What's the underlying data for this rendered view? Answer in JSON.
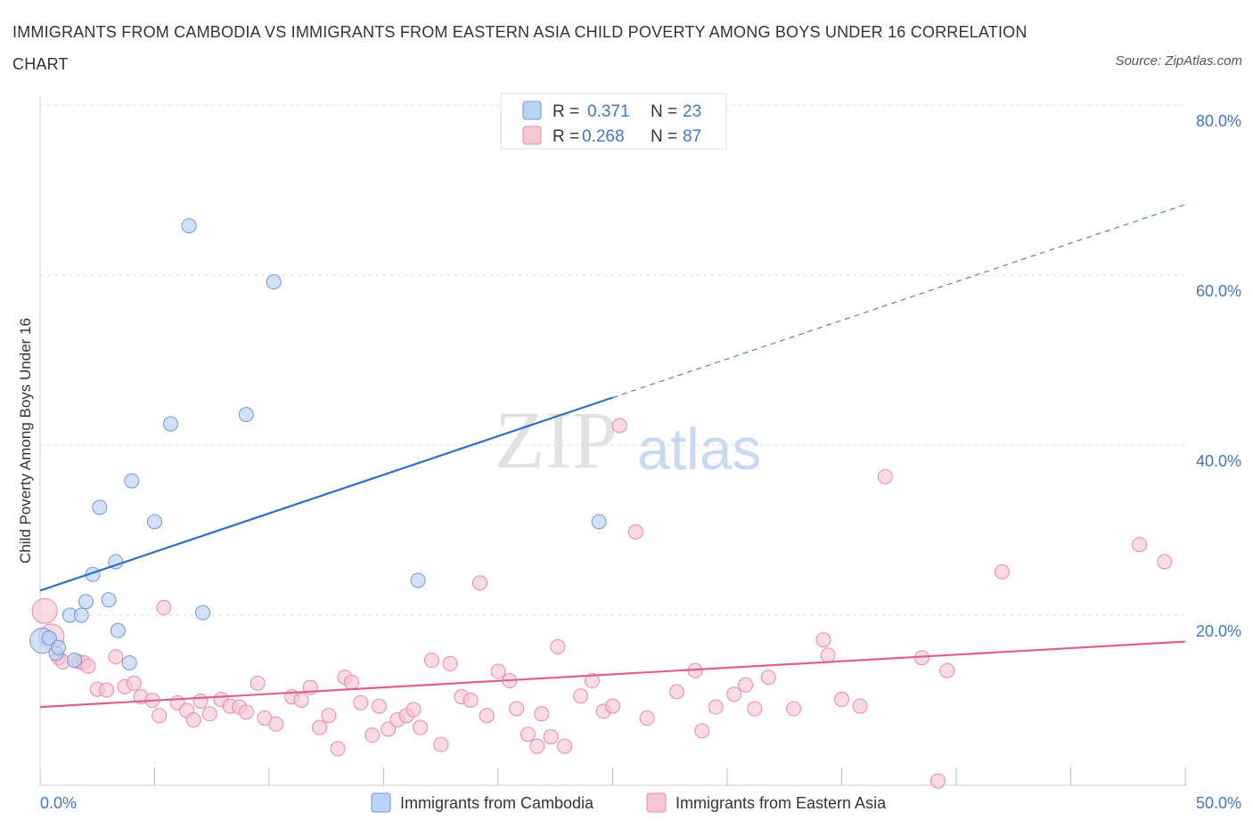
{
  "header": {
    "title": "IMMIGRANTS FROM CAMBODIA VS IMMIGRANTS FROM EASTERN ASIA CHILD POVERTY AMONG BOYS UNDER 16 CORRELATION CHART",
    "source": "Source: ZipAtlas.com"
  },
  "watermark": {
    "zip": "ZIP",
    "atlas": "atlas"
  },
  "legend": {
    "r_label": "R =",
    "n_label": "N =",
    "rows": [
      {
        "r": "0.371",
        "n": "23"
      },
      {
        "r": "0.268",
        "n": "87"
      }
    ]
  },
  "colors": {
    "cambodia_fill": "#b9d3f5",
    "cambodia_stroke": "#6a9ad6",
    "cambodia_line": "#2d6fcc",
    "easternasia_fill": "#f7c6d4",
    "easternasia_stroke": "#e98aa8",
    "easternasia_line": "#e0608c",
    "tick_text": "#3f78c6",
    "grid": "#dddddd"
  },
  "chart_data": {
    "type": "scatter",
    "title": "IMMIGRANTS FROM CAMBODIA VS IMMIGRANTS FROM EASTERN ASIA CHILD POVERTY AMONG BOYS UNDER 16 CORRELATION CHART",
    "xlabel": "",
    "ylabel": "Child Poverty Among Boys Under 16",
    "xlim": [
      0,
      50
    ],
    "ylim": [
      0,
      80
    ],
    "x_tick_labels": [
      "0.0%",
      "50.0%"
    ],
    "y_ticks": [
      20,
      40,
      60,
      80
    ],
    "y_tick_labels": [
      "20.0%",
      "40.0%",
      "60.0%",
      "80.0%"
    ],
    "grid": true,
    "legend_position": "top-center",
    "series": [
      {
        "name": "Immigrants from Cambodia",
        "r": 0.371,
        "n": 23,
        "points": [
          [
            0.1,
            17.0
          ],
          [
            0.4,
            17.3
          ],
          [
            0.7,
            15.5
          ],
          [
            0.8,
            16.2
          ],
          [
            1.3,
            20.0
          ],
          [
            1.5,
            14.7
          ],
          [
            1.8,
            20.0
          ],
          [
            2.0,
            21.6
          ],
          [
            2.3,
            24.8
          ],
          [
            2.6,
            32.7
          ],
          [
            3.0,
            21.8
          ],
          [
            3.3,
            26.3
          ],
          [
            3.4,
            18.2
          ],
          [
            3.9,
            14.4
          ],
          [
            4.0,
            35.8
          ],
          [
            5.0,
            31.0
          ],
          [
            5.7,
            42.5
          ],
          [
            6.5,
            65.8
          ],
          [
            7.1,
            20.3
          ],
          [
            9.0,
            43.6
          ],
          [
            10.2,
            59.2
          ],
          [
            16.5,
            24.1
          ],
          [
            24.4,
            31.0
          ]
        ],
        "trend": {
          "x": [
            0,
            25
          ],
          "y": [
            22.9,
            45.6
          ],
          "dashed_x": [
            25,
            50
          ],
          "dashed_y": [
            45.6,
            68.3
          ]
        }
      },
      {
        "name": "Immigrants from Eastern Asia",
        "r": 0.268,
        "n": 87,
        "points": [
          [
            0.2,
            20.5
          ],
          [
            0.5,
            17.5
          ],
          [
            0.8,
            15.0
          ],
          [
            1.0,
            14.5
          ],
          [
            1.7,
            14.5
          ],
          [
            1.9,
            14.4
          ],
          [
            2.1,
            14.0
          ],
          [
            2.5,
            11.3
          ],
          [
            2.9,
            11.2
          ],
          [
            3.3,
            15.1
          ],
          [
            3.7,
            11.6
          ],
          [
            4.1,
            12.0
          ],
          [
            4.4,
            10.4
          ],
          [
            4.9,
            10.0
          ],
          [
            5.2,
            8.2
          ],
          [
            5.4,
            20.9
          ],
          [
            6.0,
            9.7
          ],
          [
            6.4,
            8.8
          ],
          [
            6.7,
            7.7
          ],
          [
            7.0,
            9.9
          ],
          [
            7.4,
            8.4
          ],
          [
            7.9,
            10.1
          ],
          [
            8.3,
            9.3
          ],
          [
            8.7,
            9.2
          ],
          [
            9.0,
            8.6
          ],
          [
            9.5,
            12.0
          ],
          [
            9.8,
            7.9
          ],
          [
            10.3,
            7.2
          ],
          [
            11.0,
            10.4
          ],
          [
            11.4,
            10.0
          ],
          [
            11.8,
            11.5
          ],
          [
            12.2,
            6.8
          ],
          [
            12.6,
            8.2
          ],
          [
            13.0,
            4.3
          ],
          [
            13.3,
            12.7
          ],
          [
            13.6,
            12.1
          ],
          [
            14.0,
            9.7
          ],
          [
            14.5,
            5.9
          ],
          [
            14.8,
            9.3
          ],
          [
            15.2,
            6.6
          ],
          [
            15.6,
            7.7
          ],
          [
            16.0,
            8.2
          ],
          [
            16.3,
            8.9
          ],
          [
            16.6,
            6.8
          ],
          [
            17.1,
            14.7
          ],
          [
            17.5,
            4.8
          ],
          [
            17.9,
            14.3
          ],
          [
            18.4,
            10.4
          ],
          [
            18.8,
            10.0
          ],
          [
            19.2,
            23.8
          ],
          [
            19.5,
            8.2
          ],
          [
            20.0,
            13.4
          ],
          [
            20.5,
            12.3
          ],
          [
            20.8,
            9.0
          ],
          [
            21.3,
            6.0
          ],
          [
            21.7,
            4.6
          ],
          [
            21.9,
            8.4
          ],
          [
            22.3,
            5.7
          ],
          [
            22.6,
            16.3
          ],
          [
            22.9,
            4.6
          ],
          [
            23.6,
            10.5
          ],
          [
            24.1,
            12.3
          ],
          [
            24.6,
            8.7
          ],
          [
            25.0,
            9.3
          ],
          [
            25.3,
            42.3
          ],
          [
            26.0,
            29.8
          ],
          [
            26.5,
            7.9
          ],
          [
            27.8,
            11.0
          ],
          [
            28.6,
            13.5
          ],
          [
            28.9,
            6.4
          ],
          [
            29.5,
            9.2
          ],
          [
            30.3,
            10.7
          ],
          [
            30.8,
            11.8
          ],
          [
            31.2,
            9.0
          ],
          [
            31.8,
            12.7
          ],
          [
            32.9,
            9.0
          ],
          [
            34.2,
            17.1
          ],
          [
            34.4,
            15.3
          ],
          [
            35.0,
            10.1
          ],
          [
            35.8,
            9.3
          ],
          [
            36.9,
            36.3
          ],
          [
            39.2,
            0.5
          ],
          [
            38.5,
            15.0
          ],
          [
            39.6,
            13.5
          ],
          [
            42.0,
            25.1
          ],
          [
            48.0,
            28.3
          ],
          [
            49.1,
            26.3
          ]
        ],
        "trend": {
          "x": [
            0,
            50
          ],
          "y": [
            9.2,
            16.9
          ]
        }
      }
    ]
  },
  "bottom_legend": {
    "items": [
      {
        "label": "Immigrants from Cambodia"
      },
      {
        "label": "Immigrants from Eastern Asia"
      }
    ]
  }
}
